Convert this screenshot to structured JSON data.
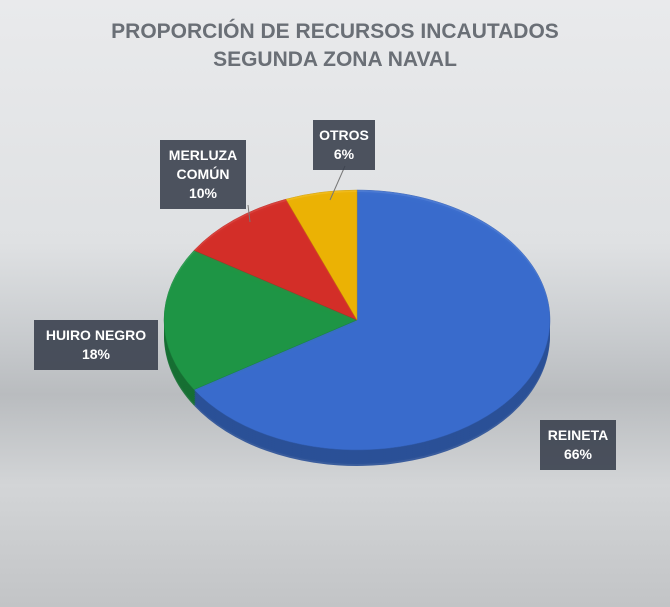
{
  "chart_data": {
    "type": "pie",
    "title": "PROPORCIÓN DE RECURSOS INCAUTADOS",
    "subtitle": "SEGUNDA ZONA NAVAL",
    "categories": [
      "REINETA",
      "HUIRO NEGRO",
      "MERLUZA COMÚN",
      "OTROS"
    ],
    "values": [
      66,
      18,
      10,
      6
    ],
    "value_labels": [
      "66%",
      "18%",
      "10%",
      "6%"
    ],
    "colors": [
      "#3b6fd2",
      "#1f9a47",
      "#d9302a",
      "#f2b705"
    ]
  }
}
